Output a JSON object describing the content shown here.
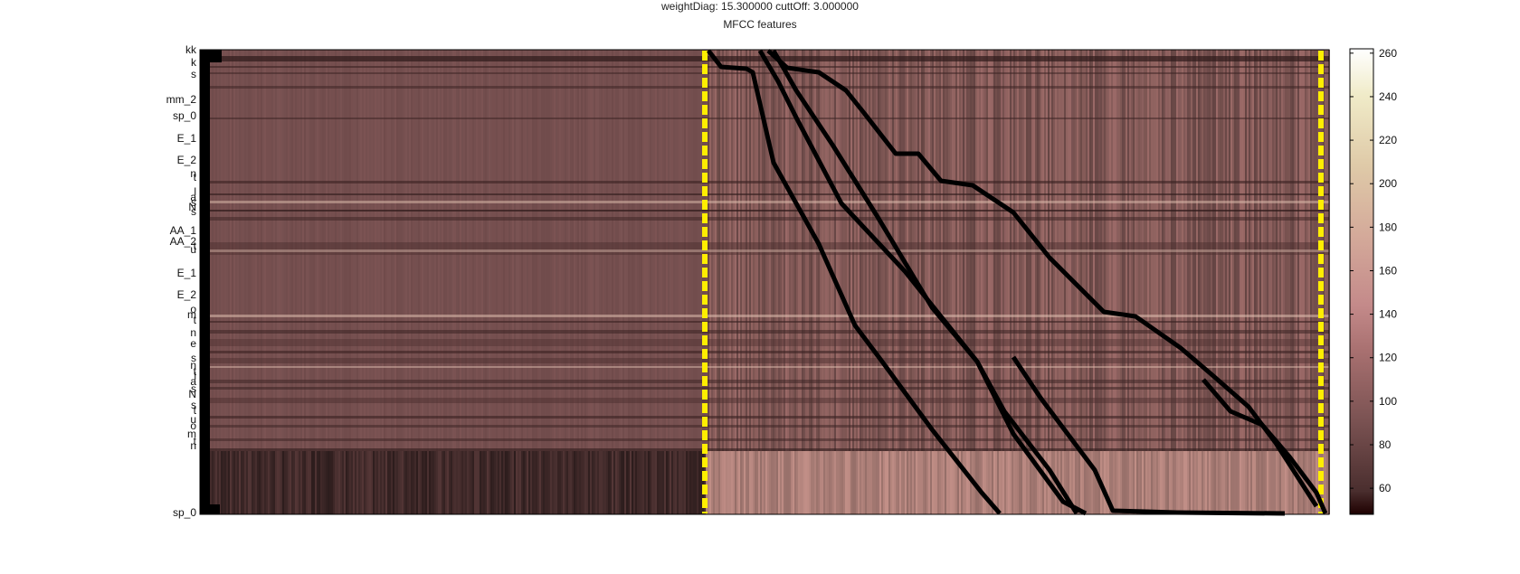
{
  "chart_data": {
    "type": "heatmap",
    "title_lines": [
      "weightDiag: 15.300000 cuttOff: 3.000000",
      "MFCC features"
    ],
    "colormap": "pink",
    "colorbar": {
      "ticks": [
        60,
        80,
        100,
        120,
        140,
        160,
        180,
        200,
        220,
        240,
        260
      ],
      "range": [
        48,
        262
      ],
      "position": "right"
    },
    "y_tick_labels": [
      "kk",
      "k",
      "s",
      "mm_2",
      "sp_0",
      "E_1",
      "E_2",
      "AA_1",
      "AA_2",
      "E_1",
      "E_2",
      "sp_0"
    ],
    "y_tick_labels_overlapping_visible": [
      "n",
      "t",
      "l",
      "a",
      "s",
      "N",
      "s",
      "t",
      "u",
      "o",
      "m",
      "t",
      "n",
      "e",
      "s"
    ],
    "row_bands": [
      {
        "label": "kk",
        "rows": [
          0,
          1
        ]
      },
      {
        "label": "sp_0 (top)",
        "rows": [
          10,
          20
        ]
      },
      {
        "label": "E_1",
        "rows": [
          20,
          30
        ]
      },
      {
        "label": "E_2",
        "rows": [
          30,
          40
        ]
      },
      {
        "label": "AA_1",
        "rows": [
          60,
          70
        ]
      },
      {
        "label": "AA_2",
        "rows": [
          70,
          80
        ]
      },
      {
        "label": "E_1",
        "rows": [
          80,
          95
        ]
      },
      {
        "label": "E_2",
        "rows": [
          95,
          110
        ]
      },
      {
        "label": "sp_0 (bottom)",
        "rows": [
          140,
          160
        ]
      }
    ],
    "overlay_markers": {
      "yellow_dashed_columns": [
        "left boundary",
        "right boundary"
      ],
      "black_alignment_paths": 6
    },
    "grid": false
  }
}
